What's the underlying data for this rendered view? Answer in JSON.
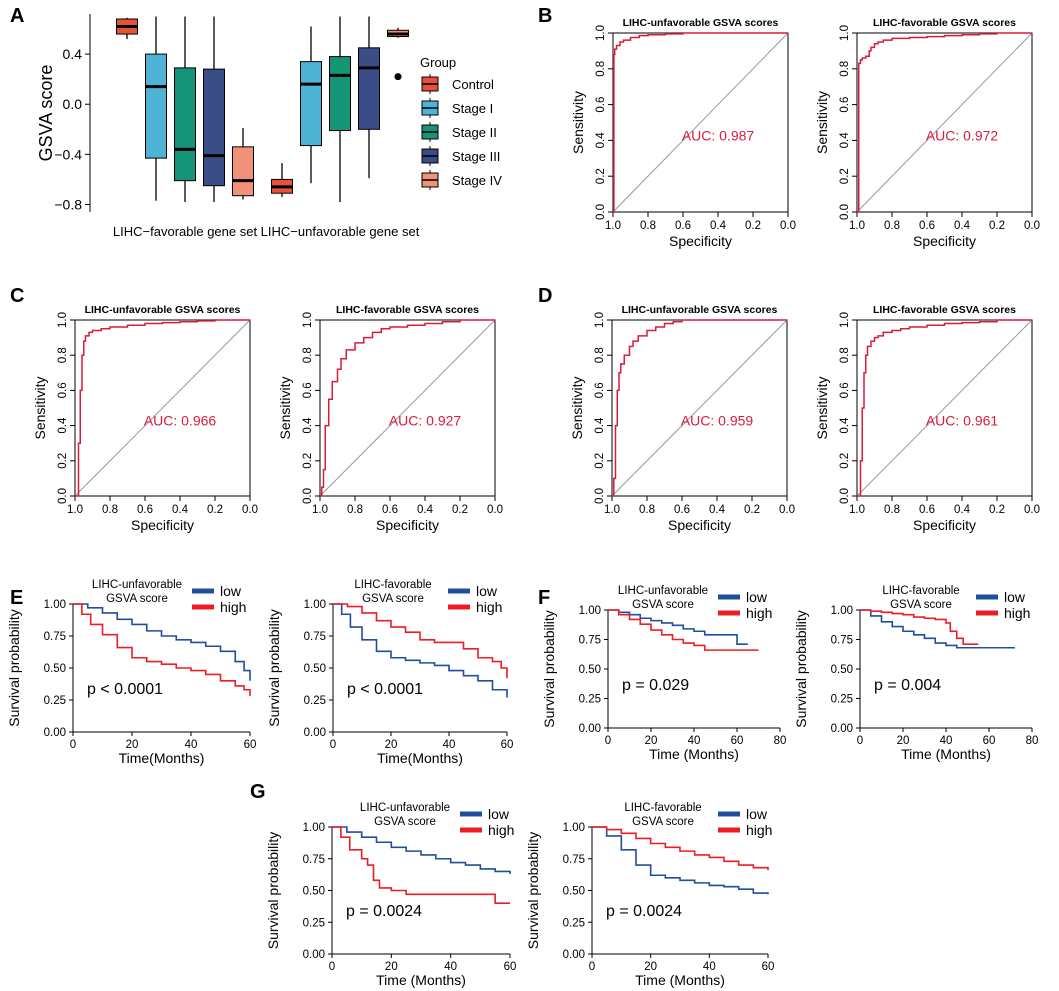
{
  "panel_letters": [
    "A",
    "B",
    "C",
    "D",
    "E",
    "F",
    "G"
  ],
  "colors": {
    "control": "#e8513a",
    "stage1": "#4fb3d6",
    "stage2": "#169477",
    "stage3": "#3b4d87",
    "stage4": "#f1917a",
    "roc": "#d81c3f",
    "km_low": "#1f4e9c",
    "km_high": "#ee1c24"
  },
  "chart_data": [
    {
      "panel": "A",
      "type": "box",
      "ylabel": "GSVA score",
      "ylim": [
        -0.86,
        0.72
      ],
      "yticks": [
        0.4,
        0.0,
        -0.4,
        -0.8
      ],
      "ytick_labels": [
        "0.4",
        "0.0",
        "−0.4",
        "−0.8"
      ],
      "categories": [
        "LIHC−favorable gene set",
        "LIHC−unfavorable gene set"
      ],
      "legend_title": "Group",
      "groups": [
        "Control",
        "Stage I",
        "Stage II",
        "Stage III",
        "Stage IV"
      ],
      "boxes": [
        {
          "category": 0,
          "group": 0,
          "min": 0.52,
          "q1": 0.56,
          "median": 0.62,
          "q3": 0.68,
          "max": 0.69
        },
        {
          "category": 0,
          "group": 1,
          "min": -0.77,
          "q1": -0.43,
          "median": 0.14,
          "q3": 0.4,
          "max": 0.7
        },
        {
          "category": 0,
          "group": 2,
          "min": -0.78,
          "q1": -0.61,
          "median": -0.36,
          "q3": 0.29,
          "max": 0.7
        },
        {
          "category": 0,
          "group": 3,
          "min": -0.78,
          "q1": -0.65,
          "median": -0.41,
          "q3": 0.28,
          "max": 0.7
        },
        {
          "category": 0,
          "group": 4,
          "min": -0.76,
          "q1": -0.73,
          "median": -0.61,
          "q3": -0.34,
          "max": -0.19
        },
        {
          "category": 1,
          "group": 0,
          "min": -0.74,
          "q1": -0.71,
          "median": -0.66,
          "q3": -0.6,
          "max": -0.47
        },
        {
          "category": 1,
          "group": 1,
          "min": -0.63,
          "q1": -0.33,
          "median": 0.16,
          "q3": 0.34,
          "max": 0.62
        },
        {
          "category": 1,
          "group": 2,
          "min": -0.78,
          "q1": -0.21,
          "median": 0.23,
          "q3": 0.38,
          "max": 0.7
        },
        {
          "category": 1,
          "group": 3,
          "min": -0.59,
          "q1": -0.2,
          "median": 0.29,
          "q3": 0.45,
          "max": 0.7
        },
        {
          "category": 1,
          "group": 4,
          "min": 0.53,
          "q1": 0.54,
          "median": 0.56,
          "q3": 0.59,
          "max": 0.61,
          "outliers": [
            0.22
          ]
        }
      ]
    },
    {
      "panel": "B",
      "type": "roc",
      "title": "LIHC-unfavorable GSVA scores",
      "auc_label": "AUC: 0.987",
      "xlabel": "Specificity",
      "ylabel": "Sensitivity",
      "fpr": [
        0,
        0.005,
        0.01,
        0.02,
        0.04,
        0.06,
        0.1,
        0.15,
        0.2,
        0.3,
        0.4,
        0.6,
        0.8,
        1.0
      ],
      "tpr": [
        0,
        0.88,
        0.91,
        0.93,
        0.95,
        0.96,
        0.975,
        0.985,
        0.99,
        0.995,
        1.0,
        1.0,
        1.0,
        1.0
      ]
    },
    {
      "panel": "B",
      "type": "roc",
      "title": "LIHC-favorable GSVA scores",
      "auc_label": "AUC: 0.972",
      "xlabel": "Specificity",
      "ylabel": "Sensitivity",
      "fpr": [
        0,
        0.01,
        0.02,
        0.03,
        0.05,
        0.07,
        0.08,
        0.1,
        0.12,
        0.15,
        0.2,
        0.3,
        0.4,
        0.5,
        0.6,
        0.7,
        0.8,
        0.9,
        1.0
      ],
      "tpr": [
        0,
        0.83,
        0.85,
        0.86,
        0.87,
        0.9,
        0.92,
        0.94,
        0.95,
        0.96,
        0.97,
        0.975,
        0.98,
        0.985,
        0.99,
        0.995,
        1.0,
        1.0,
        1.0
      ]
    },
    {
      "panel": "C",
      "type": "roc",
      "title": "LIHC-unfavorable GSVA scores",
      "auc_label": "AUC: 0.966",
      "xlabel": "Specificity",
      "ylabel": "Sensitivity",
      "fpr": [
        0,
        0.02,
        0.02,
        0.03,
        0.03,
        0.04,
        0.04,
        0.05,
        0.06,
        0.08,
        0.1,
        0.15,
        0.2,
        0.3,
        0.4,
        0.5,
        0.6,
        0.7,
        0.8,
        0.9,
        1.0
      ],
      "tpr": [
        0,
        0.1,
        0.3,
        0.45,
        0.6,
        0.7,
        0.8,
        0.88,
        0.91,
        0.93,
        0.94,
        0.95,
        0.96,
        0.97,
        0.98,
        0.985,
        0.99,
        0.995,
        1.0,
        1.0,
        1.0
      ]
    },
    {
      "panel": "C",
      "type": "roc",
      "title": "LIHC-favorable GSVA scores",
      "auc_label": "AUC: 0.927",
      "xlabel": "Specificity",
      "ylabel": "Sensitivity",
      "fpr": [
        0,
        0.01,
        0.02,
        0.03,
        0.05,
        0.07,
        0.1,
        0.12,
        0.15,
        0.2,
        0.25,
        0.3,
        0.35,
        0.4,
        0.5,
        0.6,
        0.7,
        0.8,
        0.9,
        1.0
      ],
      "tpr": [
        0,
        0.05,
        0.15,
        0.4,
        0.55,
        0.65,
        0.72,
        0.78,
        0.83,
        0.87,
        0.9,
        0.93,
        0.95,
        0.96,
        0.97,
        0.98,
        0.99,
        1.0,
        1.0,
        1.0
      ]
    },
    {
      "panel": "D",
      "type": "roc",
      "title": "LIHC-unfavorable GSVA scores",
      "auc_label": "AUC: 0.959",
      "xlabel": "Specificity",
      "ylabel": "Sensitivity",
      "fpr": [
        0,
        0.01,
        0.02,
        0.03,
        0.04,
        0.05,
        0.07,
        0.1,
        0.12,
        0.15,
        0.2,
        0.25,
        0.3,
        0.35,
        0.4,
        0.5,
        0.6,
        0.8,
        1.0
      ],
      "tpr": [
        0,
        0.1,
        0.4,
        0.6,
        0.7,
        0.75,
        0.8,
        0.85,
        0.88,
        0.91,
        0.94,
        0.96,
        0.98,
        0.99,
        1.0,
        1.0,
        1.0,
        1.0,
        1.0
      ]
    },
    {
      "panel": "D",
      "type": "roc",
      "title": "LIHC-favorable GSVA scores",
      "auc_label": "AUC: 0.961",
      "xlabel": "Specificity",
      "ylabel": "Sensitivity",
      "fpr": [
        0,
        0.02,
        0.02,
        0.03,
        0.04,
        0.05,
        0.06,
        0.08,
        0.1,
        0.12,
        0.15,
        0.2,
        0.25,
        0.3,
        0.4,
        0.5,
        0.6,
        0.7,
        0.8,
        0.9,
        1.0
      ],
      "tpr": [
        0,
        0.05,
        0.2,
        0.5,
        0.7,
        0.8,
        0.85,
        0.88,
        0.9,
        0.91,
        0.93,
        0.94,
        0.95,
        0.96,
        0.97,
        0.98,
        0.985,
        0.99,
        1.0,
        1.0,
        1.0
      ]
    },
    {
      "panel": "E",
      "type": "line",
      "title_lines": [
        "LIHC-unfavorable",
        "GSVA score"
      ],
      "pvalue": "p < 0.0001",
      "xlabel": "Time(Months)",
      "ylabel": "Survival probability",
      "xlim": [
        0,
        60
      ],
      "xticks": [
        0,
        20,
        40,
        60
      ],
      "ylim": [
        0,
        1
      ],
      "yticks": [
        "0.00",
        "0.25",
        "0.50",
        "0.75",
        "1.00"
      ],
      "series": [
        {
          "name": "low",
          "x": [
            0,
            5,
            10,
            15,
            20,
            25,
            30,
            35,
            40,
            45,
            50,
            55,
            58,
            60
          ],
          "y": [
            1.0,
            0.97,
            0.93,
            0.88,
            0.84,
            0.79,
            0.75,
            0.72,
            0.7,
            0.67,
            0.63,
            0.55,
            0.48,
            0.4
          ]
        },
        {
          "name": "high",
          "x": [
            0,
            3,
            6,
            10,
            15,
            20,
            25,
            30,
            35,
            40,
            45,
            50,
            55,
            58,
            60
          ],
          "y": [
            1.0,
            0.92,
            0.84,
            0.76,
            0.66,
            0.58,
            0.55,
            0.53,
            0.5,
            0.48,
            0.45,
            0.4,
            0.36,
            0.33,
            0.28
          ]
        }
      ]
    },
    {
      "panel": "E",
      "type": "line",
      "title_lines": [
        "LIHC-favorable",
        "GSVA score"
      ],
      "pvalue": "p < 0.0001",
      "xlabel": "Time(Months)",
      "ylabel": "Survival probability",
      "xlim": [
        0,
        60
      ],
      "xticks": [
        0,
        20,
        40,
        60
      ],
      "ylim": [
        0,
        1
      ],
      "yticks": [
        "0.00",
        "0.25",
        "0.50",
        "0.75",
        "1.00"
      ],
      "series": [
        {
          "name": "low",
          "x": [
            0,
            3,
            6,
            10,
            15,
            20,
            25,
            30,
            35,
            40,
            45,
            50,
            55,
            60
          ],
          "y": [
            1.0,
            0.92,
            0.82,
            0.72,
            0.63,
            0.58,
            0.56,
            0.54,
            0.52,
            0.48,
            0.44,
            0.4,
            0.33,
            0.27
          ]
        },
        {
          "name": "high",
          "x": [
            0,
            5,
            10,
            15,
            20,
            25,
            30,
            35,
            40,
            45,
            50,
            55,
            58,
            60
          ],
          "y": [
            1.0,
            0.98,
            0.93,
            0.87,
            0.82,
            0.78,
            0.72,
            0.7,
            0.7,
            0.65,
            0.58,
            0.55,
            0.5,
            0.42
          ]
        }
      ]
    },
    {
      "panel": "F",
      "type": "line",
      "title_lines": [
        "LIHC-unfavorable",
        "GSVA score"
      ],
      "pvalue": "p = 0.029",
      "xlabel": "Time (Months)",
      "ylabel": "Survival probability",
      "xlim": [
        0,
        80
      ],
      "xticks": [
        0,
        20,
        40,
        60,
        80
      ],
      "ylim": [
        0,
        1
      ],
      "yticks": [
        "0.00",
        "0.25",
        "0.50",
        "0.75",
        "1.00"
      ],
      "series": [
        {
          "name": "low",
          "x": [
            0,
            5,
            10,
            15,
            20,
            25,
            30,
            35,
            40,
            45,
            50,
            55,
            60,
            65
          ],
          "y": [
            1.0,
            0.98,
            0.96,
            0.93,
            0.91,
            0.89,
            0.87,
            0.84,
            0.82,
            0.79,
            0.79,
            0.79,
            0.71,
            0.71
          ]
        },
        {
          "name": "high",
          "x": [
            0,
            5,
            10,
            15,
            20,
            25,
            30,
            35,
            40,
            45,
            50,
            60,
            70
          ],
          "y": [
            1.0,
            0.96,
            0.92,
            0.88,
            0.83,
            0.79,
            0.75,
            0.72,
            0.7,
            0.66,
            0.66,
            0.66,
            0.66
          ]
        }
      ]
    },
    {
      "panel": "F",
      "type": "line",
      "title_lines": [
        "LIHC-favorable",
        "GSVA score"
      ],
      "pvalue": "p = 0.004",
      "xlabel": "Time (Months)",
      "ylabel": "Survival probability",
      "xlim": [
        0,
        80
      ],
      "xticks": [
        0,
        20,
        40,
        60,
        80
      ],
      "ylim": [
        0,
        1
      ],
      "yticks": [
        "0.00",
        "0.25",
        "0.50",
        "0.75",
        "1.00"
      ],
      "series": [
        {
          "name": "low",
          "x": [
            0,
            5,
            10,
            15,
            20,
            25,
            30,
            35,
            40,
            45,
            55,
            60,
            72
          ],
          "y": [
            1.0,
            0.95,
            0.9,
            0.86,
            0.82,
            0.79,
            0.76,
            0.72,
            0.7,
            0.68,
            0.68,
            0.68,
            0.68
          ]
        },
        {
          "name": "high",
          "x": [
            0,
            5,
            10,
            15,
            20,
            25,
            30,
            35,
            40,
            42,
            45,
            48,
            55
          ],
          "y": [
            1.0,
            0.99,
            0.98,
            0.97,
            0.96,
            0.94,
            0.93,
            0.92,
            0.89,
            0.82,
            0.76,
            0.71,
            0.71
          ]
        }
      ]
    },
    {
      "panel": "G",
      "type": "line",
      "title_lines": [
        "LIHC-unfavorable",
        "GSVA score"
      ],
      "pvalue": "p = 0.0024",
      "xlabel": "Time (Months)",
      "ylabel": "Survival probability",
      "xlim": [
        0,
        60
      ],
      "xticks": [
        0,
        20,
        40,
        60
      ],
      "ylim": [
        0,
        1
      ],
      "yticks": [
        "0.00",
        "0.25",
        "0.50",
        "0.75",
        "1.00"
      ],
      "series": [
        {
          "name": "low",
          "x": [
            0,
            5,
            10,
            15,
            20,
            25,
            30,
            35,
            40,
            45,
            50,
            55,
            60
          ],
          "y": [
            1.0,
            0.96,
            0.92,
            0.88,
            0.84,
            0.81,
            0.78,
            0.75,
            0.72,
            0.7,
            0.67,
            0.65,
            0.63
          ]
        },
        {
          "name": "high",
          "x": [
            0,
            3,
            6,
            10,
            12,
            14,
            16,
            20,
            25,
            30,
            40,
            50,
            55,
            60
          ],
          "y": [
            1.0,
            0.92,
            0.82,
            0.75,
            0.7,
            0.58,
            0.52,
            0.5,
            0.47,
            0.47,
            0.47,
            0.47,
            0.4,
            0.4
          ]
        }
      ]
    },
    {
      "panel": "G",
      "type": "line",
      "title_lines": [
        "LIHC-favorable",
        "GSVA score"
      ],
      "pvalue": "p = 0.0024",
      "xlabel": "Time (Months)",
      "ylabel": "Survival probability",
      "xlim": [
        0,
        60
      ],
      "xticks": [
        0,
        20,
        40,
        60
      ],
      "ylim": [
        0,
        1
      ],
      "yticks": [
        "0.00",
        "0.25",
        "0.50",
        "0.75",
        "1.00"
      ],
      "series": [
        {
          "name": "low",
          "x": [
            0,
            5,
            10,
            15,
            20,
            25,
            30,
            35,
            40,
            45,
            50,
            55,
            60
          ],
          "y": [
            1.0,
            0.93,
            0.82,
            0.7,
            0.62,
            0.6,
            0.58,
            0.56,
            0.54,
            0.53,
            0.51,
            0.48,
            0.47
          ]
        },
        {
          "name": "high",
          "x": [
            0,
            5,
            10,
            15,
            20,
            25,
            30,
            35,
            40,
            45,
            50,
            55,
            60
          ],
          "y": [
            1.0,
            0.98,
            0.95,
            0.91,
            0.87,
            0.84,
            0.81,
            0.78,
            0.76,
            0.73,
            0.7,
            0.68,
            0.66
          ]
        }
      ]
    }
  ]
}
